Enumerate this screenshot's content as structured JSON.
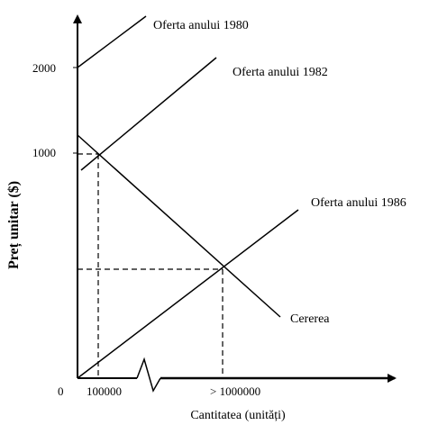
{
  "diagram": {
    "y_axis_title": "Preț unitar ($)",
    "x_axis_title": "Cantitatea (unități)",
    "origin_label": "0",
    "y_ticks": [
      "2000",
      "1000"
    ],
    "x_ticks": [
      "100000",
      "> 1000000"
    ],
    "curves": {
      "supply_1980": "Oferta anului 1980",
      "supply_1982": "Oferta anului 1982",
      "supply_1986": "Oferta anului 1986",
      "demand": "Cererea"
    }
  }
}
